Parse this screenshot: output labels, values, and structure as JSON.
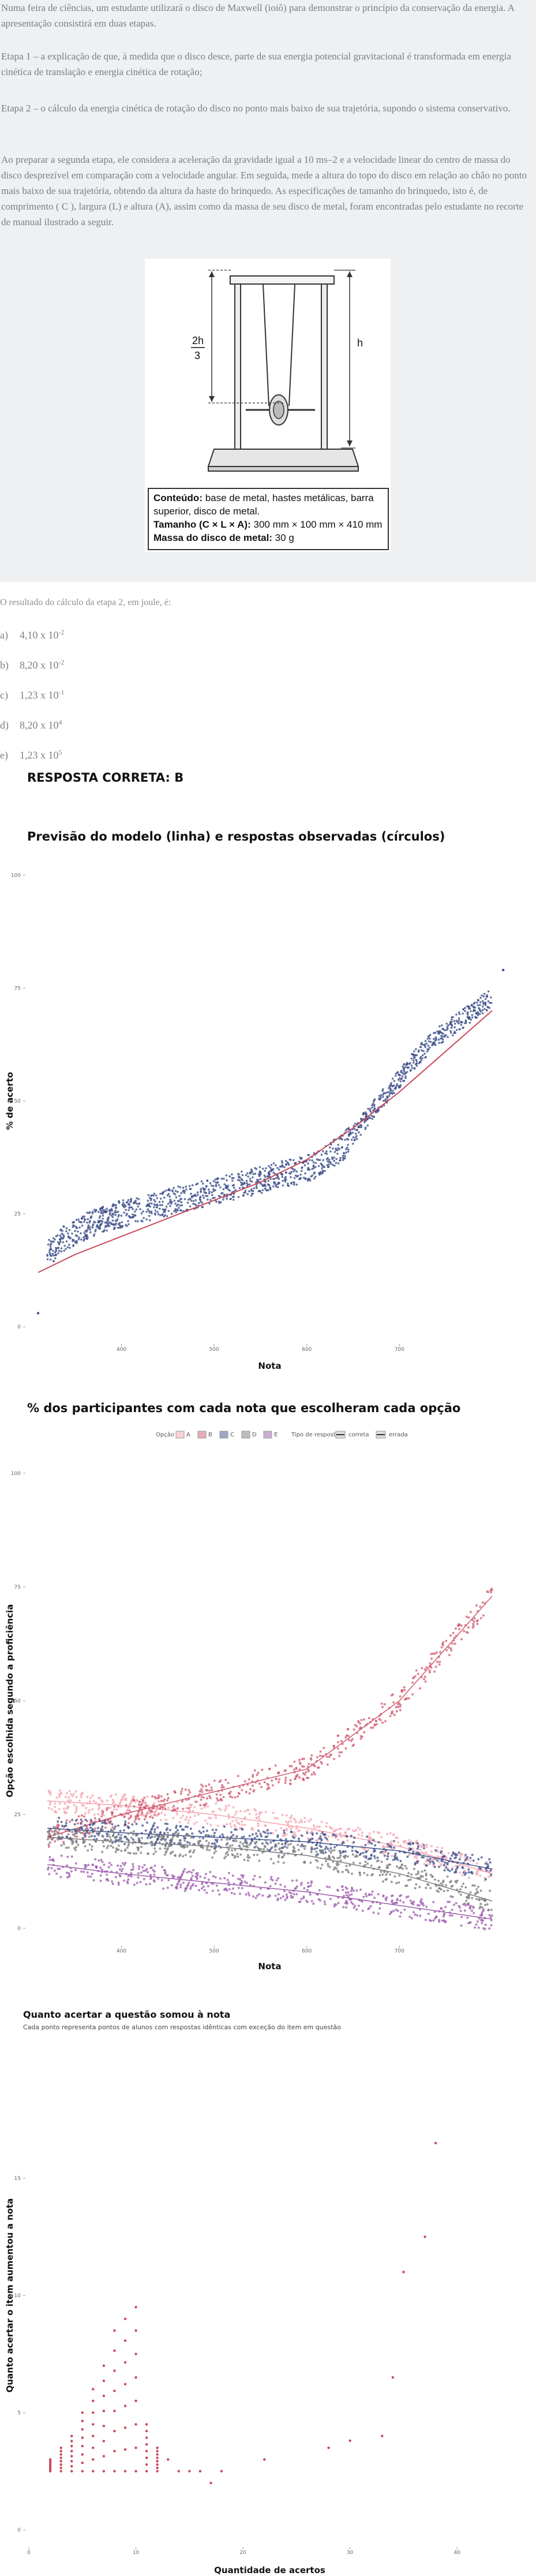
{
  "question": {
    "intro": "Numa feira de ciências, um estudante utilizará o disco de Maxwell (ioiô) para demonstrar o princípio da conservação da energia. A apresentação consistirá em duas etapas.",
    "stage1": "Etapa 1 – a explicação de que, à medida que o disco desce, parte de sua energia potencial gravitacional é transformada em energia cinética de translação e energia cinética de rotação;",
    "stage2": "Etapa 2 – o cálculo da energia cinética de rotação do disco no ponto mais baixo de sua trajetória, supondo o sistema conservativo.",
    "context": "Ao preparar a segunda etapa, ele considera a aceleração da gravidade igual a 10 ms–2 e a velocidade linear do centro de massa do disco desprezível em comparação com a velocidade angular. Em seguida, mede a altura do topo do disco em relação ao chão no ponto mais baixo de sua trajetória, obtendo da altura da haste do brinquedo. As especificações de tamanho do brinquedo, isto é, de comprimento ( C ), largura (L) e altura (A), assim como da massa de seu disco de metal, foram encontradas pelo estudante no recorte de manual ilustrado a seguir.",
    "figure": {
      "frac_num": "2h",
      "frac_den": "3",
      "h_label": "h",
      "contents_label": "Conteúdo:",
      "contents_text": " base de metal, hastes metálicas, barra superior, disco de metal.",
      "size_label": "Tamanho (C × L × A):",
      "size_text": " 300 mm × 100 mm × 410 mm",
      "mass_label": "Massa do disco de metal:",
      "mass_text": " 30 g"
    },
    "prompt": "O resultado do cálculo da etapa 2, em joule, é:",
    "options": [
      {
        "letter": "a)",
        "base": "4,10 x 10",
        "exp": "-2"
      },
      {
        "letter": "b)",
        "base": "8,20 x 10",
        "exp": "-2"
      },
      {
        "letter": "c)",
        "base": "1,23 x 10",
        "exp": "-1"
      },
      {
        "letter": "d)",
        "base": "8,20 x 10",
        "exp": "4"
      },
      {
        "letter": "e)",
        "base": "1,23 x 10",
        "exp": "5"
      }
    ]
  },
  "answer": "RESPOSTA CORRETA: B",
  "chart1": {
    "title": "Previsão do modelo (linha) e respostas observadas (círculos)",
    "colors": {
      "points": "#3d4f8a",
      "line": "#c9485b"
    }
  },
  "chart2": {
    "title": "% dos participantes com cada nota que escolheram cada opção",
    "legend_option_label": "Opção",
    "legend_type_label": "Tipo de resposta",
    "legend_options": [
      "A",
      "B",
      "C",
      "D",
      "E"
    ],
    "legend_types": [
      "correta",
      "errada"
    ],
    "colors": {
      "A": "#f4a3b0",
      "B": "#d05a6e",
      "C": "#3d4f8a",
      "D": "#7a7a7a",
      "E": "#9b5bab"
    }
  },
  "chart3": {
    "title": "Quanto acertar a questão somou à nota",
    "subtitle": "Cada ponto representa pontos de alunos com respostas idênticas com exceção do item em questão",
    "color": "#c9485b"
  },
  "chart_data": [
    {
      "type": "scatter",
      "title": "Previsão do modelo (linha) e respostas observadas (círculos)",
      "xlabel": "Nota",
      "ylabel": "% de acerto",
      "xlim": [
        300,
        820
      ],
      "ylim": [
        0,
        100
      ],
      "xticks": [
        400,
        500,
        600,
        700
      ],
      "yticks": [
        0,
        25,
        50,
        75,
        100
      ],
      "series": [
        {
          "name": "",
          "kind": "points",
          "x": [
            320,
            340,
            360,
            380,
            400,
            420,
            440,
            460,
            480,
            500,
            520,
            540,
            560,
            580,
            600,
            620,
            640,
            660,
            680,
            700,
            720,
            740,
            760,
            780,
            800
          ],
          "values": [
            16,
            20,
            22,
            24,
            25,
            26,
            27,
            28,
            29,
            30,
            31,
            32,
            33,
            34,
            35,
            37,
            40,
            45,
            50,
            55,
            60,
            64,
            67,
            70,
            73
          ]
        },
        {
          "name": "",
          "kind": "line",
          "x": [
            310,
            350,
            400,
            450,
            500,
            550,
            600,
            650,
            700,
            750,
            800
          ],
          "values": [
            12,
            16,
            20,
            24,
            28,
            32,
            37,
            44,
            52,
            61,
            70
          ]
        }
      ]
    },
    {
      "type": "scatter",
      "title": "% dos participantes com cada nota que escolheram cada opção",
      "xlabel": "Nota",
      "ylabel": "Opção escolhida segundo a proficiência",
      "xlim": [
        300,
        820
      ],
      "ylim": [
        0,
        100
      ],
      "xticks": [
        400,
        500,
        600,
        700
      ],
      "yticks": [
        0,
        25,
        50,
        75,
        100
      ],
      "series": [
        {
          "name": "A",
          "x": [
            320,
            400,
            500,
            600,
            700,
            800
          ],
          "values": [
            28,
            27,
            25,
            22,
            18,
            12
          ]
        },
        {
          "name": "B",
          "x": [
            320,
            400,
            500,
            600,
            700,
            800
          ],
          "values": [
            20,
            25,
            30,
            35,
            50,
            73
          ]
        },
        {
          "name": "C",
          "x": [
            320,
            400,
            500,
            600,
            700,
            800
          ],
          "values": [
            22,
            21,
            20,
            19,
            17,
            13
          ]
        },
        {
          "name": "D",
          "x": [
            320,
            400,
            500,
            600,
            700,
            800
          ],
          "values": [
            20,
            19,
            18,
            16,
            12,
            6
          ]
        },
        {
          "name": "E",
          "x": [
            320,
            400,
            500,
            600,
            700,
            800
          ],
          "values": [
            14,
            12,
            10,
            8,
            5,
            2
          ]
        }
      ]
    },
    {
      "type": "scatter",
      "title": "Quanto acertar a questão somou à nota",
      "subtitle": "Cada ponto representa pontos de alunos com respostas idênticas com exceção do item em questão",
      "xlabel": "Quantidade de acertos",
      "ylabel": "Quanto acertar o item aumentou a nota",
      "xlim": [
        0,
        45
      ],
      "ylim": [
        0,
        20
      ],
      "xticks": [
        0,
        10,
        20,
        30,
        40
      ],
      "yticks": [
        0,
        5,
        10,
        15
      ],
      "series": [
        {
          "name": "",
          "x": [
            2,
            3,
            4,
            5,
            6,
            7,
            8,
            9,
            10,
            11,
            12,
            13,
            14,
            15,
            16,
            17,
            18,
            22,
            28,
            30,
            33,
            34,
            35,
            37,
            38
          ],
          "values": [
            3,
            3.5,
            4,
            5,
            6,
            7,
            8.5,
            9,
            9.5,
            4.5,
            3.5,
            3,
            2.5,
            2.5,
            2.5,
            2,
            2.5,
            3,
            3.5,
            3.8,
            4,
            6.5,
            11,
            12.5,
            16.5
          ]
        }
      ]
    }
  ]
}
